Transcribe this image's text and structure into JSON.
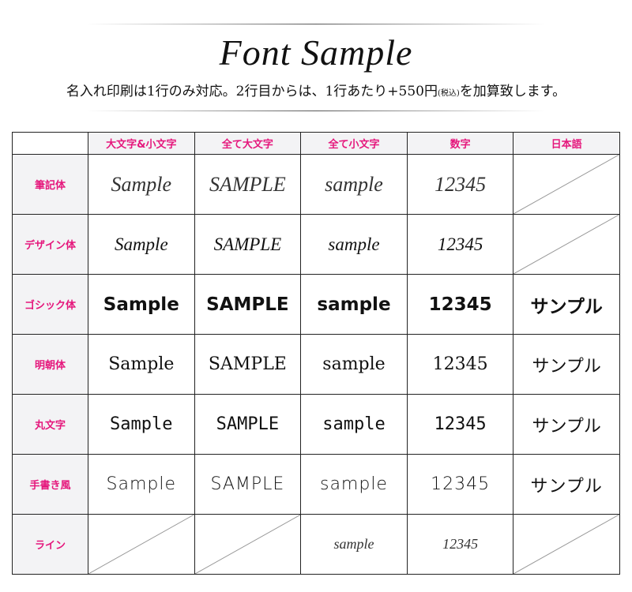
{
  "header": {
    "title": "Font Sample",
    "subtitle_main": "名入れ印刷は1行のみ対応。2行目からは、1行あたり+550円",
    "subtitle_small": "(税込)",
    "subtitle_end": "を加算致します。"
  },
  "accent_color": "#e5177c",
  "table": {
    "columns": [
      "大文字&小文字",
      "全て大文字",
      "全て小文字",
      "数字",
      "日本語"
    ],
    "rows": [
      {
        "label": "筆記体",
        "cells": [
          "Sample",
          "SAMPLE",
          "sample",
          "12345",
          null
        ]
      },
      {
        "label": "デザイン体",
        "cells": [
          "Sample",
          "SAMPLE",
          "sample",
          "12345",
          null
        ]
      },
      {
        "label": "ゴシック体",
        "cells": [
          "Sample",
          "SAMPLE",
          "sample",
          "12345",
          "サンプル"
        ]
      },
      {
        "label": "明朝体",
        "cells": [
          "Sample",
          "SAMPLE",
          "sample",
          "12345",
          "サンプル"
        ]
      },
      {
        "label": "丸文字",
        "cells": [
          "Sample",
          "SAMPLE",
          "sample",
          "12345",
          "サンプル"
        ]
      },
      {
        "label": "手書き風",
        "cells": [
          "Sample",
          "SAMPLE",
          "sample",
          "12345",
          "サンプル"
        ]
      },
      {
        "label": "ライン",
        "cells": [
          null,
          null,
          "sample",
          "12345",
          null
        ]
      }
    ]
  }
}
